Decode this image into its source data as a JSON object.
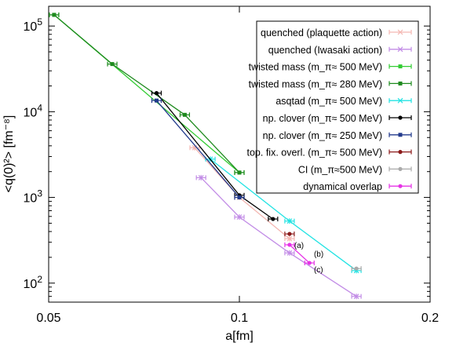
{
  "chart_data": {
    "type": "scatter",
    "xlabel": "a[fm]",
    "ylabel": "<q(0)²> [fm⁻⁸]",
    "xscale": "log",
    "yscale": "log",
    "xlim": [
      0.05,
      0.2
    ],
    "ylim": [
      60,
      170000
    ],
    "x_ticks": [
      {
        "value": 0.05,
        "label": "0.05"
      },
      {
        "value": 0.1,
        "label": "0.1"
      },
      {
        "value": 0.2,
        "label": "0.2"
      }
    ],
    "y_ticks": [
      {
        "value": 100,
        "base": "10",
        "exp": "2"
      },
      {
        "value": 1000,
        "base": "10",
        "exp": "3"
      },
      {
        "value": 10000,
        "base": "10",
        "exp": "4"
      },
      {
        "value": 100000,
        "base": "10",
        "exp": "5"
      }
    ],
    "legend_position": "top-right",
    "grid": false,
    "series": [
      {
        "name": "quenched (plaquette action)",
        "color": "#f4b7b2",
        "marker": "star",
        "points": [
          {
            "x": 0.085,
            "y": 3800
          },
          {
            "x": 0.1,
            "y": 1000
          },
          {
            "x": 0.12,
            "y": 330
          }
        ]
      },
      {
        "name": "quenched (Iwasaki action)",
        "color": "#c28ce6",
        "marker": "star",
        "points": [
          {
            "x": 0.087,
            "y": 1700
          },
          {
            "x": 0.1,
            "y": 590
          },
          {
            "x": 0.12,
            "y": 225
          },
          {
            "x": 0.153,
            "y": 70
          }
        ]
      },
      {
        "name": "twisted mass (m_π≈ 500 MeV)",
        "color": "#33cc33",
        "marker": "square",
        "points": [
          {
            "x": 0.051,
            "y": 135000
          },
          {
            "x": 0.1,
            "y": 1950
          }
        ]
      },
      {
        "name": "twisted mass  (m_π≈ 280 MeV)",
        "color": "#1e8a1e",
        "marker": "square",
        "points": [
          {
            "x": 0.051,
            "y": 135000
          },
          {
            "x": 0.063,
            "y": 36000
          },
          {
            "x": 0.082,
            "y": 9200
          },
          {
            "x": 0.1,
            "y": 1950
          }
        ]
      },
      {
        "name": "asqtad (m_π≈ 500 MeV)",
        "color": "#22e3e3",
        "marker": "star",
        "points": [
          {
            "x": 0.09,
            "y": 2800
          },
          {
            "x": 0.12,
            "y": 530
          },
          {
            "x": 0.153,
            "y": 140
          }
        ]
      },
      {
        "name": "np. clover (m_π≈ 500 MeV)",
        "color": "#000000",
        "marker": "dot",
        "points": [
          {
            "x": 0.074,
            "y": 16500
          },
          {
            "x": 0.1,
            "y": 1060
          },
          {
            "x": 0.113,
            "y": 560
          }
        ]
      },
      {
        "name": "np. clover (m_π≈ 250 MeV)",
        "color": "#223a8c",
        "marker": "square",
        "points": [
          {
            "x": 0.074,
            "y": 13500
          },
          {
            "x": 0.1,
            "y": 1000
          }
        ]
      },
      {
        "name": "top. fix. overl. (m_π≈ 500 MeV)",
        "color": "#8b1a1a",
        "marker": "dot",
        "points": [
          {
            "x": 0.12,
            "y": 375
          }
        ]
      },
      {
        "name": "CI (m_π≈500 MeV)",
        "color": "#aaaaaa",
        "marker": "dot",
        "points": [
          {
            "x": 0.153,
            "y": 148
          }
        ]
      },
      {
        "name": "dynamical overlap",
        "color": "#e633e6",
        "marker": "dot",
        "points": [
          {
            "x": 0.12,
            "y": 280
          },
          {
            "x": 0.129,
            "y": 172
          }
        ]
      }
    ],
    "annotations": [
      {
        "text": "(a)",
        "x": 0.121,
        "y": 280
      },
      {
        "text": "(b)",
        "x": 0.13,
        "y": 222
      },
      {
        "text": "(c)",
        "x": 0.13,
        "y": 146
      }
    ]
  }
}
